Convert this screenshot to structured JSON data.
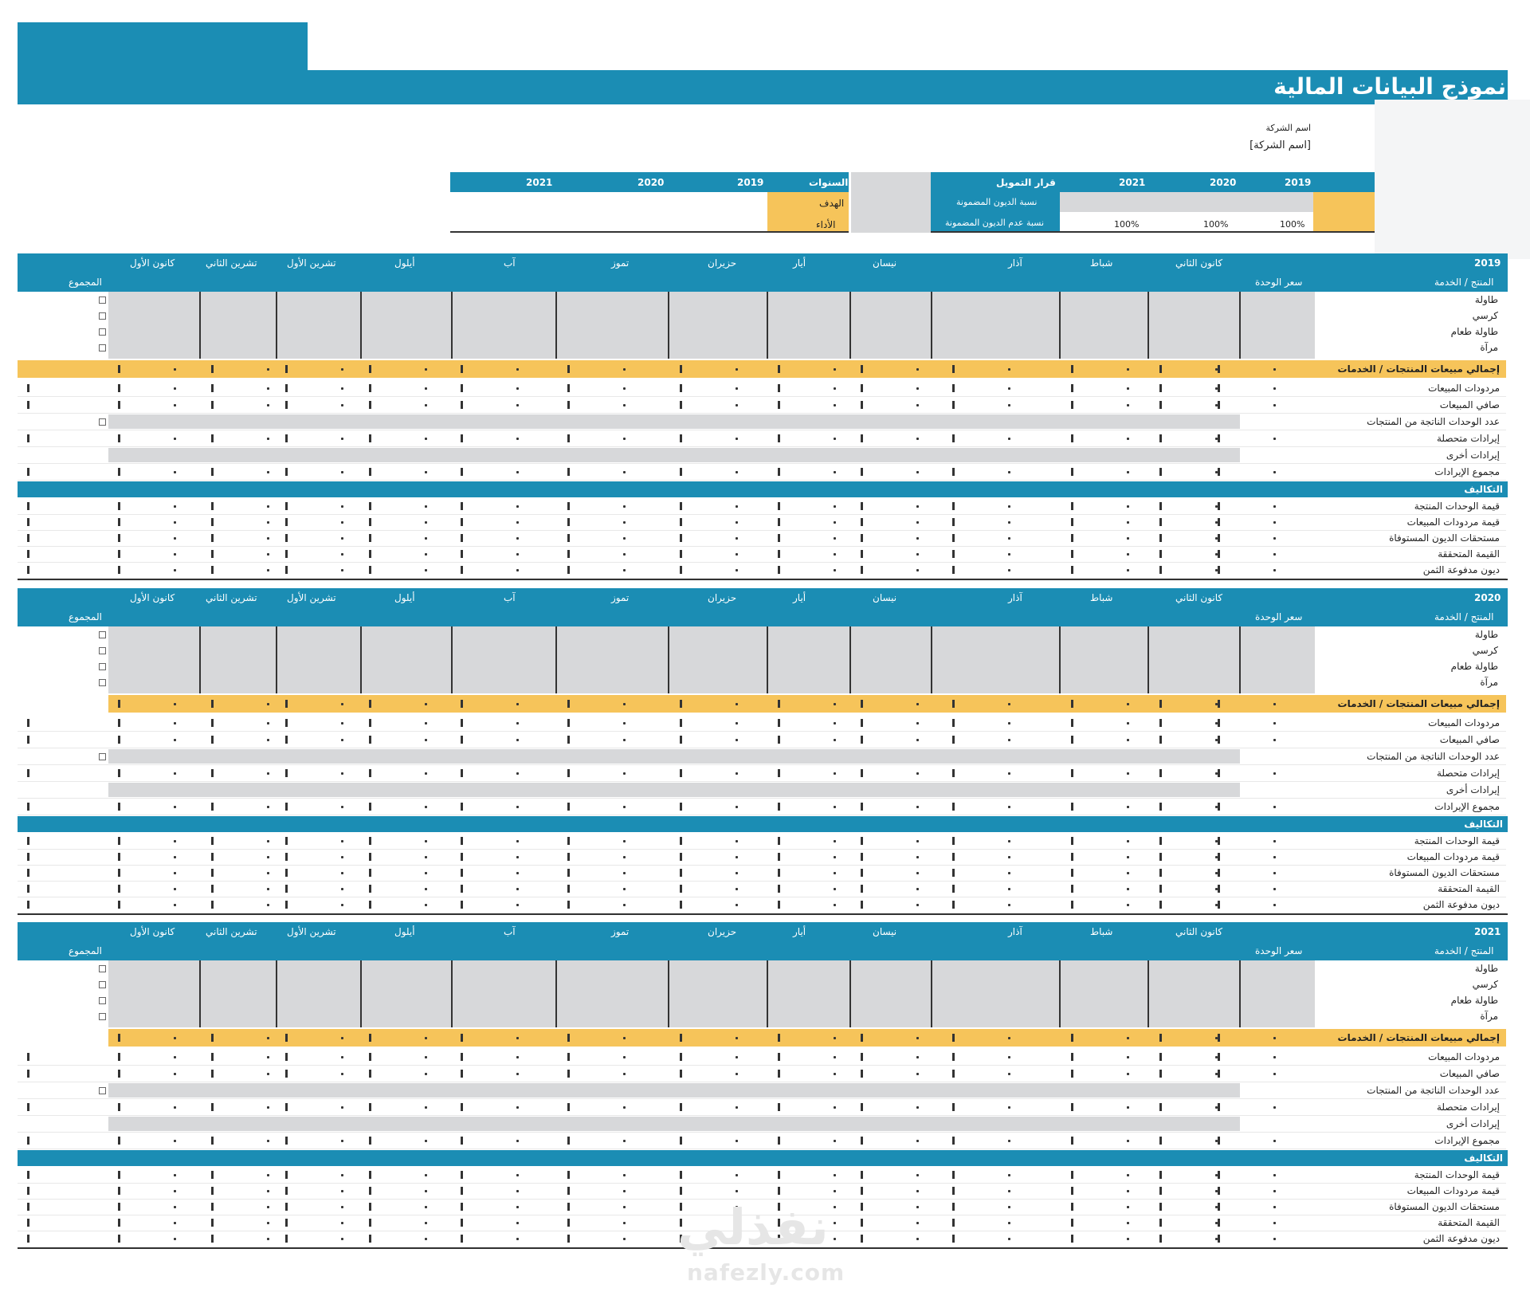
{
  "title": "نموذج البيانات المالية",
  "company": {
    "name_label": "اسم الشركة",
    "name_value": "[اسم الشركة]"
  },
  "summary": {
    "left": {
      "years": [
        "2021",
        "2020",
        "2019"
      ],
      "col_label": "السنوات",
      "rows": [
        {
          "label": "الهدف"
        },
        {
          "label": "الأداء"
        }
      ]
    },
    "right": {
      "title": "قرار التمويل",
      "years": [
        "2021",
        "2020",
        "2019"
      ],
      "rows": [
        {
          "label": "نسبة الديون المضمونة"
        },
        {
          "label": "نسبة عدم الديون المضمونة"
        }
      ],
      "values": [
        "100%",
        "100%",
        "100%"
      ]
    }
  },
  "month_headers": [
    "كانون الأول",
    "تشرين الثاني",
    "تشرين الأول",
    "أيلول",
    "آب",
    "تموز",
    "حزيران",
    "أيار",
    "نيسان",
    "آذار",
    "شباط",
    "كانون الثاني"
  ],
  "col_total": "المجموع",
  "col_unit_price": "سعر الوحدة",
  "col_product": "المنتج / الخدمة",
  "products": [
    "طاولة",
    "كرسي",
    "طاولة طعام",
    "مرآة"
  ],
  "total_row_label": "إجمالي مبيعات المنتجات / الخدمات",
  "revenue_rows": [
    "مردودات المبيعات",
    "صافي المبيعات",
    "عدد الوحدات الناتجة من المنتجات",
    "إيرادات متحصلة",
    "إيرادات أخرى",
    "مجموع الإيرادات"
  ],
  "costs_header": "التكاليف",
  "cost_rows": [
    "قيمة الوحدات المنتجة",
    "قيمة مردودات المبيعات",
    "مستحقات الديون المستوفاة",
    "القيمة المتحققة",
    "ديون مدفوعة الثمن"
  ],
  "sections": [
    {
      "year": "2019"
    },
    {
      "year": "2020"
    },
    {
      "year": "2021"
    }
  ],
  "watermark": {
    "arabic": "نفذلي",
    "url": "nafezly.com"
  },
  "colors": {
    "teal": "#1b8db4",
    "gold": "#f6c45a",
    "gray": "#d7d8da"
  }
}
